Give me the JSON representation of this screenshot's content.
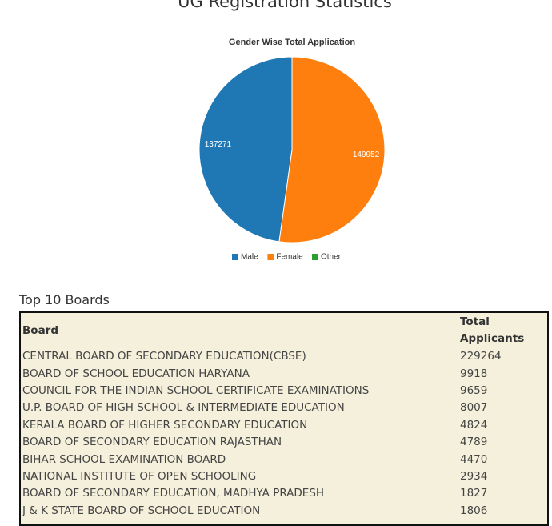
{
  "title": "UG Registration Statistics",
  "chart_data": {
    "type": "pie",
    "title": "Gender Wise Total Application",
    "categories": [
      "Male",
      "Female",
      "Other"
    ],
    "values": [
      137271,
      149952,
      0
    ],
    "colors": [
      "#1f77b4",
      "#ff7f0e",
      "#2ca02c"
    ],
    "legend": "bottom"
  },
  "table": {
    "title": "Top 10 Boards",
    "header": [
      "Board",
      "Total Applicants"
    ],
    "rows": [
      [
        "CENTRAL BOARD OF SECONDARY EDUCATION(CBSE)",
        "229264"
      ],
      [
        "BOARD OF SCHOOL EDUCATION HARYANA",
        "9918"
      ],
      [
        "COUNCIL FOR THE INDIAN SCHOOL CERTIFICATE EXAMINATIONS",
        "9659"
      ],
      [
        "U.P. BOARD OF HIGH SCHOOL & INTERMEDIATE EDUCATION",
        "8007"
      ],
      [
        "KERALA BOARD OF HIGHER SECONDARY EDUCATION",
        "4824"
      ],
      [
        "BOARD OF SECONDARY EDUCATION RAJASTHAN",
        "4789"
      ],
      [
        "BIHAR SCHOOL EXAMINATION BOARD",
        "4470"
      ],
      [
        "NATIONAL INSTITUTE OF OPEN SCHOOLING",
        "2934"
      ],
      [
        "BOARD OF SECONDARY EDUCATION,  MADHYA PRADESH",
        "1827"
      ],
      [
        "J & K STATE BOARD OF SCHOOL EDUCATION",
        "1806"
      ]
    ]
  }
}
